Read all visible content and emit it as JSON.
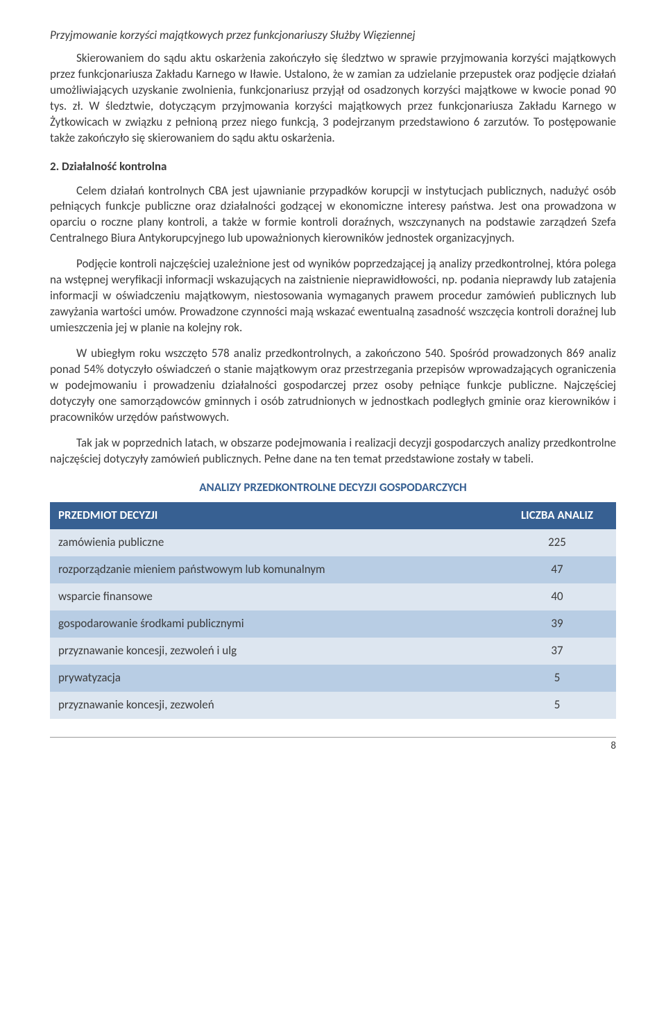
{
  "headingItalic": "Przyjmowanie korzyści majątkowych przez funkcjonariuszy Służby Więziennej",
  "para1": "Skierowaniem do sądu aktu oskarżenia zakończyło się śledztwo w sprawie przyjmowania korzyści majątkowych przez funkcjonariusza Zakładu Karnego w Iławie. Ustalono, że w zamian za udzielanie przepustek oraz podjęcie działań umożliwiających uzyskanie zwolnienia, funkcjonariusz przyjął od osadzonych korzyści majątkowe w kwocie ponad 90 tys. zł. W śledztwie, dotyczącym przyjmowania korzyści majątkowych przez funkcjonariusza Zakładu Karnego w Żytkowicach w związku z pełnioną przez niego funkcją, 3 podejrzanym przedstawiono 6 zarzutów. To postępowanie także zakończyło się skierowaniem do sądu aktu oskarżenia.",
  "sectionHeading": "2. Działalność kontrolna",
  "para2": "Celem działań kontrolnych CBA jest ujawnianie przypadków korupcji w instytucjach publicznych, nadużyć osób pełniących funkcje publiczne oraz działalności godzącej w ekonomiczne interesy państwa. Jest ona prowadzona w oparciu o roczne plany kontroli, a także w formie kontroli doraźnych, wszczynanych na podstawie zarządzeń Szefa Centralnego Biura Antykorupcyjnego lub upoważnionych kierowników jednostek organizacyjnych.",
  "para3": "Podjęcie kontroli najczęściej uzależnione jest od wyników poprzedzającej ją analizy przedkontrolnej, która polega na wstępnej weryfikacji informacji wskazujących na zaistnienie nieprawidłowości, np. podania nieprawdy lub zatajenia informacji w oświadczeniu majątkowym, niestosowania wymaganych prawem procedur zamówień publicznych lub zawyżania wartości umów. Prowadzone czynności mają wskazać ewentualną zasadność wszczęcia kontroli doraźnej lub umieszczenia jej w planie na kolejny rok.",
  "para4": "W ubiegłym roku wszczęto 578 analiz przedkontrolnych, a zakończono 540. Spośród prowadzonych 869 analiz ponad 54% dotyczyło oświadczeń o stanie majątkowym oraz przestrzegania przepisów wprowadzających ograniczenia w podejmowaniu i prowadzeniu działalności gospodarczej przez osoby pełniące funkcje publiczne. Najczęściej dotyczyły one samorządowców gminnych i osób zatrudnionych w jednostkach podległych gminie oraz kierowników i pracowników urzędów państwowych.",
  "para5": "Tak jak w poprzednich latach, w obszarze podejmowania i realizacji decyzji gospodarczych analizy przedkontrolne najczęściej dotyczyły zamówień publicznych. Pełne dane na ten temat przedstawione zostały w tabeli.",
  "tableTitle": "ANALIZY PRZEDKONTROLNE DECYZJI GOSPODARCZYCH",
  "table": {
    "headerBg": "#376092",
    "rowLight": "#dde6f0",
    "rowDark": "#b8cde4",
    "col1": "PRZEDMIOT DECYZJI",
    "col2": "LICZBA ANALIZ",
    "rows": [
      {
        "label": "zamówienia publiczne",
        "value": "225"
      },
      {
        "label": "rozporządzanie mieniem państwowym lub komunalnym",
        "value": "47"
      },
      {
        "label": "wsparcie finansowe",
        "value": "40"
      },
      {
        "label": "gospodarowanie środkami publicznymi",
        "value": "39"
      },
      {
        "label": "przyznawanie koncesji, zezwoleń i ulg",
        "value": "37"
      },
      {
        "label": "prywatyzacja",
        "value": "5"
      },
      {
        "label": "przyznawanie koncesji, zezwoleń",
        "value": "5"
      }
    ]
  },
  "pageNumber": "8"
}
